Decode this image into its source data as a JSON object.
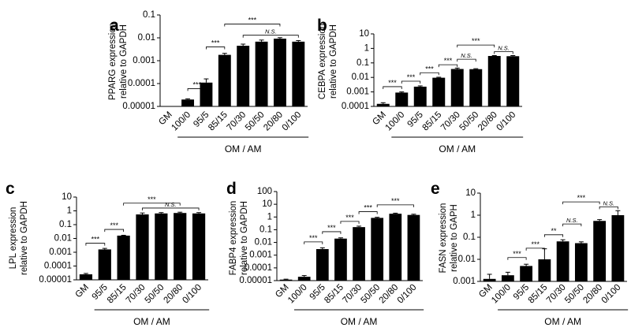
{
  "figure_labels": [
    "a",
    "b",
    "c",
    "d",
    "e"
  ],
  "chart_data": [
    {
      "panel": "a",
      "type": "bar",
      "ylabel": [
        "PPARG expression",
        "relative to GAPDH"
      ],
      "yscale": "log",
      "ylim": [
        1e-05,
        0.1
      ],
      "yticks": [
        "0.00001",
        "0.0001",
        "0.001",
        "0.01",
        "0.1"
      ],
      "categories": [
        "GM",
        "100/0",
        "95/5",
        "85/15",
        "70/30",
        "50/50",
        "20/80",
        "0/100"
      ],
      "values": [
        null,
        2e-05,
        0.00011,
        0.0018,
        0.0045,
        0.0068,
        0.0092,
        0.0068
      ],
      "errors": [
        null,
        1.5e-06,
        5e-05,
        0.0003,
        0.0008,
        0.0012,
        0.001,
        0.0008
      ],
      "group_label": "OM / AM",
      "comparisons": [
        {
          "from": 1,
          "to": 2,
          "label": "***",
          "level": 6e-05
        },
        {
          "from": 2,
          "to": 3,
          "label": "***",
          "level": 0.004
        },
        {
          "from": 3,
          "to": 6,
          "label": "***",
          "level": 0.04
        },
        {
          "from": 4,
          "to": 7,
          "label": "N.S.",
          "level": 0.013
        }
      ]
    },
    {
      "panel": "b",
      "type": "bar",
      "ylabel": [
        "CEBPA expression",
        "relative to GAPDH"
      ],
      "yscale": "log",
      "ylim": [
        0.0001,
        10
      ],
      "yticks": [
        "0.0001",
        "0.001",
        "0.01",
        "0.1",
        "1",
        "10"
      ],
      "categories": [
        "GM",
        "100/0",
        "95/5",
        "85/15",
        "70/30",
        "50/50",
        "20/80",
        "0/100"
      ],
      "values": [
        0.00015,
        0.0009,
        0.0023,
        0.0095,
        0.038,
        0.037,
        0.3,
        0.29
      ],
      "errors": [
        3e-05,
        0.0001,
        0.0003,
        0.0008,
        0.006,
        0.003,
        0.02,
        0.03
      ],
      "group_label": "OM / AM",
      "comparisons": [
        {
          "from": 0,
          "to": 1,
          "label": "***",
          "level": 0.0023
        },
        {
          "from": 1,
          "to": 2,
          "label": "***",
          "level": 0.0055
        },
        {
          "from": 2,
          "to": 3,
          "label": "***",
          "level": 0.021
        },
        {
          "from": 3,
          "to": 4,
          "label": "***",
          "level": 0.075
        },
        {
          "from": 4,
          "to": 5,
          "label": "N.S.",
          "level": 0.18
        },
        {
          "from": 4,
          "to": 6,
          "label": "***",
          "level": 1.7
        },
        {
          "from": 6,
          "to": 7,
          "label": "N.S.",
          "level": 0.6
        }
      ]
    },
    {
      "panel": "c",
      "type": "bar",
      "ylabel": [
        "LPL expression",
        "relative to GAPDH"
      ],
      "yscale": "log",
      "ylim": [
        1e-05,
        10
      ],
      "yticks": [
        "0.00001",
        "0.0001",
        "0.001",
        "0.01",
        "0.1",
        "1",
        "10"
      ],
      "categories": [
        "GM",
        "95/5",
        "85/15",
        "70/30",
        "50/50",
        "20/80",
        "0/100"
      ],
      "values": [
        2.5e-05,
        0.0016,
        0.016,
        0.55,
        0.65,
        0.7,
        0.65
      ],
      "errors": [
        4e-06,
        0.0003,
        0.001,
        0.15,
        0.1,
        0.1,
        0.1
      ],
      "group_label": "OM / AM",
      "comparisons": [
        {
          "from": 0,
          "to": 1,
          "label": "***",
          "level": 0.0045
        },
        {
          "from": 1,
          "to": 2,
          "label": "***",
          "level": 0.045
        },
        {
          "from": 2,
          "to": 5,
          "label": "***",
          "level": 3.6
        },
        {
          "from": 3,
          "to": 6,
          "label": "N.S.",
          "level": 1.6
        }
      ]
    },
    {
      "panel": "d",
      "type": "bar",
      "ylabel": [
        "FABP4 expression",
        "relative to GAPDH"
      ],
      "yscale": "log",
      "ylim": [
        1e-05,
        100
      ],
      "yticks": [
        "0.00001",
        "0.0001",
        "0.001",
        "0.01",
        "0.1",
        "1",
        "10",
        "100"
      ],
      "categories": [
        "GM",
        "100/0",
        "95/5",
        "85/15",
        "70/30",
        "50/50",
        "20/80",
        "0/100"
      ],
      "values": [
        1.2e-05,
        2e-05,
        0.003,
        0.02,
        0.16,
        0.85,
        1.8,
        1.45
      ],
      "errors": [
        1e-06,
        5e-06,
        0.0008,
        0.003,
        0.03,
        0.1,
        0.2,
        0.2
      ],
      "group_label": "OM / AM",
      "comparisons": [
        {
          "from": 1,
          "to": 2,
          "label": "***",
          "level": 0.011
        },
        {
          "from": 2,
          "to": 3,
          "label": "***",
          "level": 0.07
        },
        {
          "from": 3,
          "to": 4,
          "label": "***",
          "level": 0.45
        },
        {
          "from": 4,
          "to": 5,
          "label": "***",
          "level": 2.6
        },
        {
          "from": 5,
          "to": 7,
          "label": "***",
          "level": 9
        }
      ]
    },
    {
      "panel": "e",
      "type": "bar",
      "ylabel": [
        "FASN expression",
        "relative to GAPH"
      ],
      "yscale": "log",
      "ylim": [
        0.001,
        10
      ],
      "yticks": [
        "0.001",
        "0.01",
        "0.1",
        "1",
        "10"
      ],
      "categories": [
        "GM",
        "100/0",
        "95/5",
        "85/15",
        "70/30",
        "50/50",
        "20/80",
        "0/100"
      ],
      "values": [
        0.0013,
        0.0019,
        0.005,
        0.01,
        0.065,
        0.054,
        0.55,
        1.0
      ],
      "errors": [
        0.0008,
        0.0007,
        0.001,
        0.02,
        0.012,
        0.008,
        0.08,
        0.6
      ],
      "group_label": "OM / AM",
      "comparisons": [
        {
          "from": 1,
          "to": 2,
          "label": "***",
          "level": 0.012
        },
        {
          "from": 2,
          "to": 3,
          "label": "***",
          "level": 0.032
        },
        {
          "from": 3,
          "to": 4,
          "label": "**",
          "level": 0.13
        },
        {
          "from": 4,
          "to": 5,
          "label": "N.S.",
          "level": 0.4
        },
        {
          "from": 4,
          "to": 6,
          "label": "***",
          "level": 4
        },
        {
          "from": 6,
          "to": 7,
          "label": "N.S.",
          "level": 2.4
        }
      ]
    }
  ]
}
